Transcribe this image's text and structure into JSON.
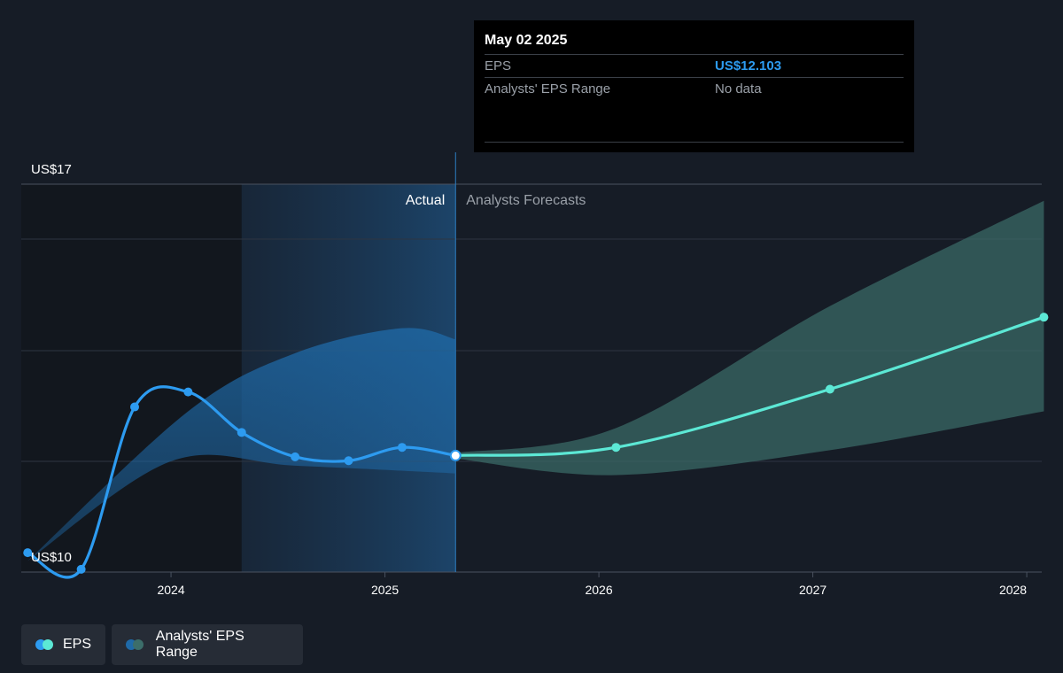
{
  "colors": {
    "eps_actual": "#2d9bf0",
    "eps_forecast": "#5ce8d5",
    "range_actual": "#1f6aa8",
    "range_forecast": "#3c6e6a"
  },
  "tooltip": {
    "date": "May 02 2025",
    "rows": [
      {
        "label": "EPS",
        "value": "US$12.103"
      },
      {
        "label": "Analysts' EPS Range",
        "value": "No data"
      }
    ]
  },
  "legend": [
    {
      "label": "EPS",
      "icon": "eps-legend-dots-icon"
    },
    {
      "label": "Analysts' EPS Range",
      "icon": "range-legend-dots-icon"
    }
  ],
  "chart_data": {
    "type": "line",
    "y_axis": {
      "min": 10,
      "max": 17,
      "labels": [
        "US$17",
        "US$10"
      ]
    },
    "x_axis": {
      "min": 2023.3,
      "max": 2028.08,
      "ticks": [
        2024,
        2025,
        2026,
        2027,
        2028
      ],
      "tick_labels": [
        "2024",
        "2025",
        "2026",
        "2027",
        "2028"
      ]
    },
    "regions": {
      "actual_label": "Actual",
      "forecast_label": "Analysts Forecasts",
      "divider_x": 2025.33
    },
    "series": [
      {
        "name": "EPS",
        "kind": "actual",
        "points": [
          [
            2023.33,
            10.35
          ],
          [
            2023.58,
            10.05
          ],
          [
            2023.83,
            12.98
          ],
          [
            2024.08,
            13.25
          ],
          [
            2024.33,
            12.52
          ],
          [
            2024.58,
            12.08
          ],
          [
            2024.83,
            12.01
          ],
          [
            2025.08,
            12.25
          ],
          [
            2025.33,
            12.103
          ]
        ]
      },
      {
        "name": "EPS",
        "kind": "forecast",
        "points": [
          [
            2025.33,
            12.103
          ],
          [
            2026.08,
            12.25
          ],
          [
            2027.08,
            13.3
          ],
          [
            2028.08,
            14.6
          ]
        ]
      }
    ],
    "range_actual": {
      "upper": [
        [
          2023.33,
          10.2
        ],
        [
          2024.08,
          12.9
        ],
        [
          2024.58,
          13.95
        ],
        [
          2025.08,
          14.4
        ],
        [
          2025.33,
          14.2
        ]
      ],
      "lower": [
        [
          2023.33,
          10.2
        ],
        [
          2024.0,
          12.0
        ],
        [
          2024.58,
          11.92
        ],
        [
          2025.33,
          11.78
        ]
      ]
    },
    "range_forecast": {
      "upper": [
        [
          2025.33,
          12.15
        ],
        [
          2026.08,
          12.6
        ],
        [
          2027.08,
          14.8
        ],
        [
          2028.08,
          16.7
        ]
      ],
      "lower": [
        [
          2025.33,
          12.05
        ],
        [
          2026.08,
          11.75
        ],
        [
          2027.08,
          12.2
        ],
        [
          2028.08,
          12.9
        ]
      ]
    }
  }
}
